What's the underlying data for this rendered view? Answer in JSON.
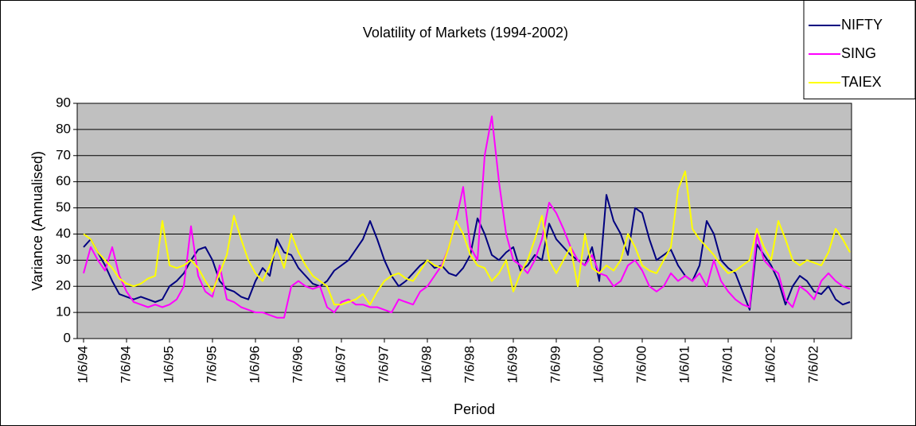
{
  "chart_data": {
    "type": "line",
    "title": "Volatility of Markets (1994-2002)",
    "x_label": "Period",
    "y_label": "Variance (Annualised)",
    "categories": [
      "1/6/94",
      null,
      null,
      null,
      null,
      null,
      "7/6/94",
      null,
      null,
      null,
      null,
      null,
      "1/6/95",
      null,
      null,
      null,
      null,
      null,
      "7/6/95",
      null,
      null,
      null,
      null,
      null,
      "1/6/96",
      null,
      null,
      null,
      null,
      null,
      "7/6/96",
      null,
      null,
      null,
      null,
      null,
      "1/6/97",
      null,
      null,
      null,
      null,
      null,
      "7/6/97",
      null,
      null,
      null,
      null,
      null,
      "1/6/98",
      null,
      null,
      null,
      null,
      null,
      "7/6/98",
      null,
      null,
      null,
      null,
      null,
      "1/6/99",
      null,
      null,
      null,
      null,
      null,
      "7/6/99",
      null,
      null,
      null,
      null,
      null,
      "1/6/00",
      null,
      null,
      null,
      null,
      null,
      "7/6/00",
      null,
      null,
      null,
      null,
      null,
      "1/6/01",
      null,
      null,
      null,
      null,
      null,
      "7/6/01",
      null,
      null,
      null,
      null,
      null,
      "1/6/02",
      null,
      null,
      null,
      null,
      null,
      "7/6/02",
      null,
      null,
      null,
      null,
      null
    ],
    "series": [
      {
        "name": "NIFTY",
        "color": "#000080",
        "values": [
          35,
          38,
          33,
          28,
          22,
          17,
          16,
          15,
          16,
          15,
          14,
          15,
          20,
          22,
          25,
          30,
          34,
          35,
          30,
          22,
          19,
          18,
          16,
          15,
          22,
          27,
          24,
          38,
          33,
          32,
          27,
          24,
          21,
          20,
          22,
          26,
          28,
          30,
          34,
          38,
          45,
          38,
          30,
          24,
          20,
          22,
          25,
          28,
          30,
          27,
          28,
          25,
          24,
          27,
          32,
          46,
          40,
          32,
          30,
          33,
          35,
          26,
          28,
          32,
          30,
          44,
          38,
          35,
          32,
          30,
          28,
          35,
          22,
          55,
          45,
          40,
          32,
          50,
          48,
          38,
          30,
          32,
          34,
          28,
          24,
          22,
          28,
          45,
          40,
          30,
          27,
          25,
          18,
          11,
          36,
          32,
          28,
          22,
          13,
          20,
          24,
          22,
          18,
          17,
          20,
          15,
          13,
          14
        ]
      },
      {
        "name": "SING",
        "color": "#ff00ff",
        "values": [
          25,
          35,
          30,
          26,
          35,
          24,
          18,
          14,
          13,
          12,
          13,
          12,
          13,
          15,
          20,
          43,
          24,
          18,
          16,
          28,
          15,
          14,
          12,
          11,
          10,
          10,
          9,
          8,
          8,
          20,
          22,
          20,
          19,
          20,
          12,
          10,
          14,
          15,
          13,
          13,
          12,
          12,
          11,
          10,
          15,
          14,
          13,
          18,
          20,
          24,
          28,
          35,
          45,
          58,
          35,
          30,
          70,
          85,
          60,
          40,
          30,
          28,
          25,
          30,
          38,
          52,
          48,
          42,
          35,
          30,
          28,
          32,
          25,
          24,
          20,
          22,
          28,
          30,
          26,
          20,
          18,
          20,
          25,
          22,
          24,
          22,
          25,
          20,
          30,
          22,
          18,
          15,
          13,
          12,
          40,
          30,
          27,
          25,
          15,
          12,
          20,
          18,
          15,
          22,
          25,
          22,
          20,
          19
        ]
      },
      {
        "name": "TAIEX",
        "color": "#ffff00",
        "values": [
          40,
          38,
          33,
          30,
          27,
          23,
          21,
          20,
          21,
          23,
          24,
          45,
          28,
          27,
          28,
          30,
          27,
          22,
          18,
          25,
          32,
          47,
          38,
          30,
          25,
          22,
          28,
          35,
          27,
          40,
          33,
          28,
          24,
          22,
          20,
          13,
          13,
          14,
          15,
          17,
          13,
          18,
          22,
          24,
          25,
          23,
          22,
          26,
          30,
          28,
          27,
          35,
          45,
          40,
          32,
          28,
          27,
          22,
          25,
          30,
          18,
          25,
          30,
          38,
          47,
          30,
          25,
          30,
          35,
          20,
          40,
          27,
          25,
          28,
          26,
          30,
          40,
          35,
          28,
          26,
          25,
          30,
          35,
          57,
          64,
          42,
          38,
          35,
          32,
          28,
          25,
          26,
          28,
          30,
          42,
          35,
          30,
          45,
          38,
          30,
          28,
          30,
          29,
          28,
          33,
          42,
          38,
          33
        ]
      }
    ],
    "ylim": [
      0,
      90
    ],
    "yticks": [
      0,
      10,
      20,
      30,
      40,
      50,
      60,
      70,
      80,
      90
    ],
    "grid": true,
    "legend": "top-right"
  }
}
